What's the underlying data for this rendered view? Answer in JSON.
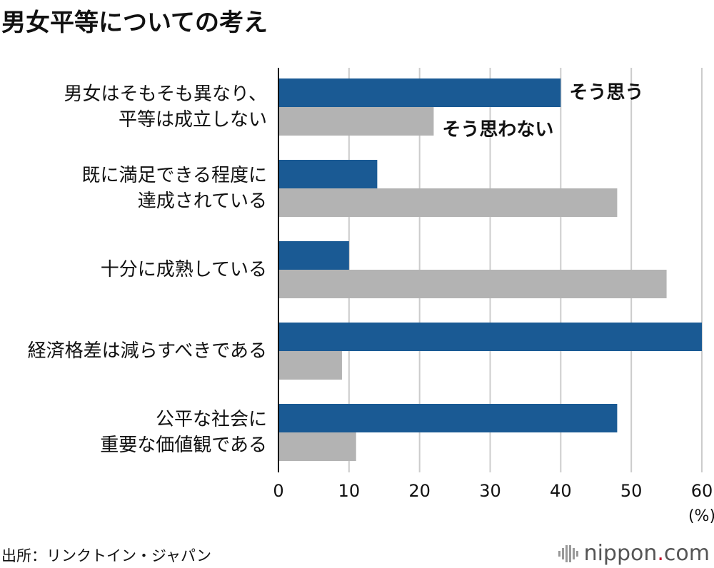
{
  "title": "男女平等についての考え",
  "source": "出所：リンクトイン・ジャパン",
  "brand": {
    "name": "nippon",
    "dot": ".",
    "tld": "com"
  },
  "colors": {
    "agree": "#1a5a94",
    "disagree": "#b3b3b3",
    "grid": "#cccccc",
    "axis": "#000000"
  },
  "chart_data": {
    "type": "bar",
    "orientation": "horizontal",
    "categories": [
      [
        "男女はそもそも異なり、",
        "平等は成立しない"
      ],
      [
        "既に満足できる程度に",
        "達成されている"
      ],
      [
        "十分に成熟している"
      ],
      [
        "経済格差は減らすべきである"
      ],
      [
        "公平な社会に",
        "重要な価値観である"
      ]
    ],
    "series": [
      {
        "name": "そう思う",
        "values": [
          40,
          14,
          10,
          60,
          48
        ]
      },
      {
        "name": "そう思わない",
        "values": [
          22,
          48,
          55,
          9,
          11
        ]
      }
    ],
    "xlim": [
      0,
      60
    ],
    "xticks": [
      0,
      10,
      20,
      30,
      40,
      50,
      60
    ],
    "xunit": "(%)",
    "legend": "inline-first-group"
  }
}
